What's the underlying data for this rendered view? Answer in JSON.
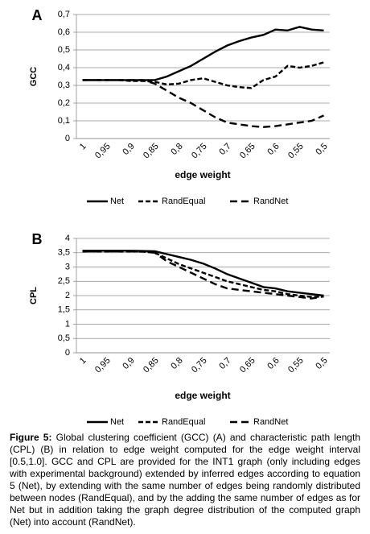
{
  "chart_data": [
    {
      "type": "line",
      "panel": "A",
      "y_label": "GCC",
      "x_label": "edge weight",
      "categories": [
        "1",
        null,
        "0,95",
        null,
        "0,9",
        null,
        "0,85",
        null,
        "0,8",
        null,
        "0,75",
        null,
        "0,7",
        null,
        "0,65",
        null,
        "0,6",
        null,
        "0,55",
        null,
        "0,5"
      ],
      "ylim": [
        0,
        0.7
      ],
      "yticks": [
        0,
        {
          "value": 0.1,
          "label": "0,1"
        },
        {
          "value": 0.2,
          "label": "0,2"
        },
        {
          "value": 0.3,
          "label": "0,3"
        },
        {
          "value": 0.4,
          "label": "0,4"
        },
        {
          "value": 0.5,
          "label": "0,5"
        },
        {
          "value": 0.6,
          "label": "0,6"
        },
        {
          "value": 0.7,
          "label": "0,7"
        }
      ],
      "grid": true,
      "legend": "bottom",
      "series": [
        {
          "name": "Net",
          "color": "#000000",
          "line_style": "solid",
          "values": [
            0.33,
            0.33,
            0.33,
            0.33,
            0.33,
            0.33,
            0.33,
            0.35,
            0.38,
            0.41,
            0.45,
            0.49,
            0.525,
            0.55,
            0.57,
            0.585,
            0.615,
            0.61,
            0.63,
            0.615,
            0.61
          ]
        },
        {
          "name": "RandEqual",
          "color": "#000000",
          "line_style": "dashed",
          "values": [
            0.33,
            0.33,
            0.33,
            0.33,
            0.325,
            0.325,
            0.32,
            0.305,
            0.31,
            0.33,
            0.34,
            0.32,
            0.3,
            0.29,
            0.285,
            0.33,
            0.35,
            0.41,
            0.4,
            0.41,
            0.43
          ]
        },
        {
          "name": "RandNet",
          "color": "#000000",
          "line_style": "long-dashed",
          "values": [
            0.33,
            0.33,
            0.33,
            0.33,
            0.33,
            0.33,
            0.31,
            0.27,
            0.23,
            0.2,
            0.16,
            0.12,
            0.09,
            0.08,
            0.07,
            0.065,
            0.07,
            0.08,
            0.09,
            0.1,
            0.13
          ]
        }
      ]
    },
    {
      "type": "line",
      "panel": "B",
      "y_label": "CPL",
      "x_label": "edge weight",
      "categories": [
        "1",
        null,
        "0,95",
        null,
        "0,9",
        null,
        "0,85",
        null,
        "0,8",
        null,
        "0,75",
        null,
        "0,7",
        null,
        "0,65",
        null,
        "0,6",
        null,
        "0,55",
        null,
        "0,5"
      ],
      "ylim": [
        0,
        4
      ],
      "yticks": [
        0,
        {
          "value": 0.5,
          "label": "0,5"
        },
        1,
        {
          "value": 1.5,
          "label": "1,5"
        },
        2,
        {
          "value": 2.5,
          "label": "2,5"
        },
        3,
        {
          "value": 3.5,
          "label": "3,5"
        },
        4
      ],
      "grid": true,
      "legend": "bottom",
      "series": [
        {
          "name": "Net",
          "color": "#000000",
          "line_style": "solid",
          "values": [
            3.57,
            3.57,
            3.57,
            3.57,
            3.57,
            3.56,
            3.55,
            3.45,
            3.35,
            3.25,
            3.12,
            2.95,
            2.75,
            2.6,
            2.45,
            2.3,
            2.25,
            2.15,
            2.1,
            2.05,
            2.0
          ]
        },
        {
          "name": "RandEqual",
          "color": "#000000",
          "line_style": "dashed",
          "values": [
            3.55,
            3.55,
            3.55,
            3.55,
            3.55,
            3.54,
            3.5,
            3.3,
            3.1,
            2.95,
            2.8,
            2.65,
            2.5,
            2.4,
            2.3,
            2.2,
            2.15,
            2.05,
            2.0,
            1.95,
            1.97
          ]
        },
        {
          "name": "RandNet",
          "color": "#000000",
          "line_style": "long-dashed",
          "values": [
            3.55,
            3.55,
            3.55,
            3.55,
            3.55,
            3.54,
            3.5,
            3.2,
            3.0,
            2.8,
            2.6,
            2.4,
            2.25,
            2.2,
            2.15,
            2.1,
            2.05,
            2.0,
            1.95,
            1.9,
            1.97
          ]
        }
      ]
    }
  ],
  "caption": {
    "label": "Figure 5:",
    "text": "Global clustering coefficient (GCC) (A) and characteristic path length (CPL) (B) in relation to edge weight computed for the edge weight interval [0.5,1.0]. GCC and CPL are provided for the INT1 graph (only including edges with experimental background) extended by inferred edges according to equation 5 (Net), by extending with the same number of edges being randomly distributed between nodes (RandEqual), and by the adding the same number of edges as for Net but in addition taking the graph degree distribution of the computed graph (Net) into account (RandNet)."
  }
}
